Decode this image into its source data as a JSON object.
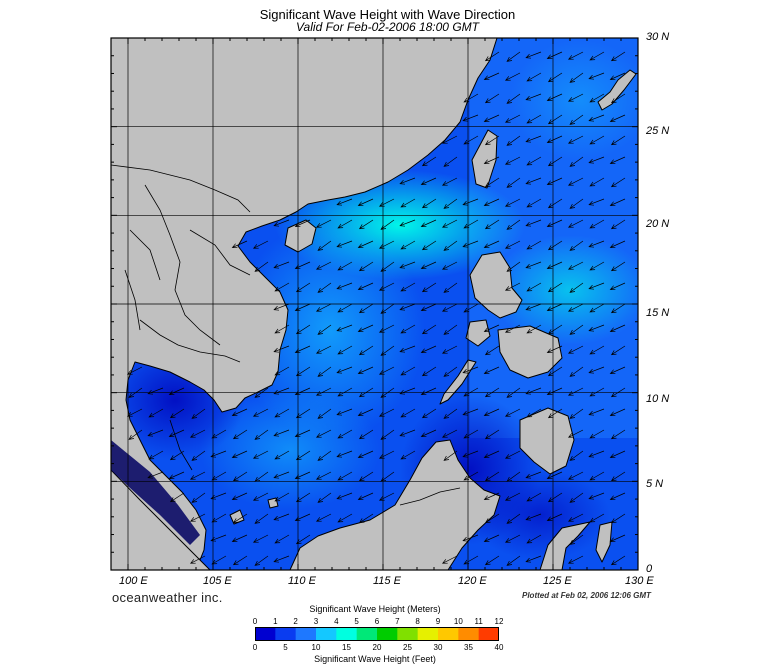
{
  "header": {
    "title": "Significant Wave Height with Wave Direction",
    "subtitle": "Valid For Feb-02-2006 18:00 GMT"
  },
  "map": {
    "lon_range": [
      99,
      130
    ],
    "lat_range": [
      0,
      30
    ],
    "lat_labels": [
      "30 N",
      "25 N",
      "20 N",
      "15 N",
      "10 N",
      "5 N",
      "0"
    ],
    "lon_labels": [
      "100 E",
      "105 E",
      "110 E",
      "115 E",
      "120 E",
      "125 E",
      "130 E"
    ],
    "land_color": "#c0c0c0",
    "arrow_direction": "toward the southwest"
  },
  "footer": {
    "brand": "oceanweather inc.",
    "plotted": "Plotted at Feb 02, 2006 12:06 GMT"
  },
  "colorbar": {
    "top_label": "Significant Wave Height (Meters)",
    "bottom_label": "Significant Wave Height (Feet)",
    "meters_ticks": [
      "0",
      "1",
      "2",
      "3",
      "4",
      "5",
      "6",
      "7",
      "8",
      "9",
      "10",
      "11",
      "12"
    ],
    "feet_ticks": [
      "0",
      "5",
      "10",
      "15",
      "20",
      "25",
      "30",
      "35",
      "40"
    ],
    "colors": [
      "#0000d0",
      "#0a3cf0",
      "#1e78ff",
      "#14c8ff",
      "#00ffe0",
      "#00e878",
      "#00cc00",
      "#80e000",
      "#e6f000",
      "#ffc800",
      "#ff8c00",
      "#ff3c00"
    ]
  }
}
